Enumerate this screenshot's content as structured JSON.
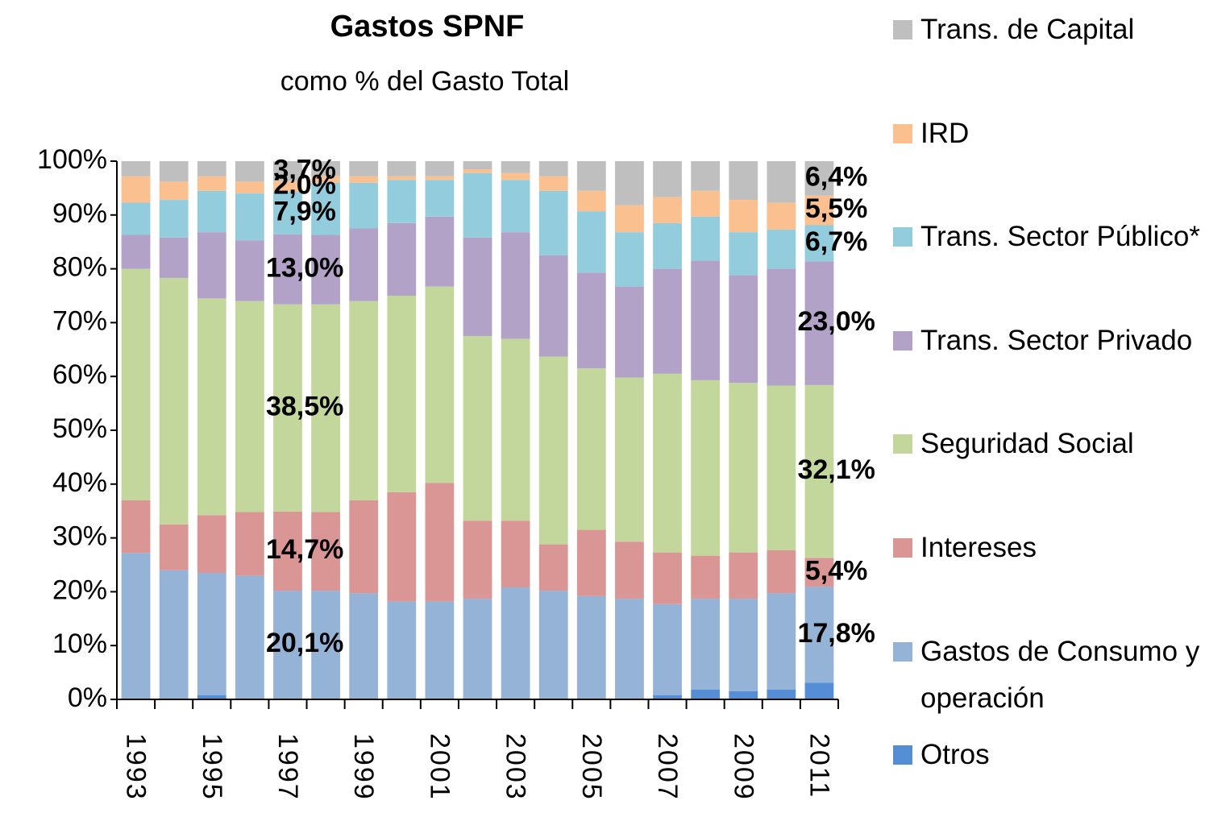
{
  "chart_data": {
    "type": "stacked_bar",
    "title": "Gastos SPNF",
    "subtitle": "como % del Gasto Total",
    "categories": [
      "1993",
      null,
      "1995",
      null,
      "1997",
      null,
      "1999",
      null,
      "2001",
      null,
      "2003",
      null,
      "2005",
      null,
      "2007",
      null,
      "2009",
      null,
      "2011"
    ],
    "ylim": [
      0,
      100
    ],
    "yticks": [
      {
        "value": 0,
        "label": "0%"
      },
      {
        "value": 10,
        "label": "10%"
      },
      {
        "value": 20,
        "label": "20%"
      },
      {
        "value": 30,
        "label": "30%"
      },
      {
        "value": 40,
        "label": "40%"
      },
      {
        "value": 50,
        "label": "50%"
      },
      {
        "value": 60,
        "label": "60%"
      },
      {
        "value": 70,
        "label": "70%"
      },
      {
        "value": 80,
        "label": "80%"
      },
      {
        "value": 90,
        "label": "90%"
      },
      {
        "value": 100,
        "label": "100%"
      }
    ],
    "legend": "right",
    "series": [
      {
        "name": "Otros",
        "color": "#558ed5",
        "values": [
          0,
          0,
          0.8,
          0,
          0.1,
          0,
          0,
          0,
          0,
          0,
          0,
          0,
          0,
          0,
          0.8,
          1.8,
          1.5,
          1.8,
          3.1
        ]
      },
      {
        "name": "Gastos de Consumo y operación",
        "color": "#95b3d7",
        "values": [
          27.2,
          24,
          22.7,
          23,
          20.1,
          20.2,
          19.7,
          18.2,
          18.2,
          18.7,
          20.8,
          20.2,
          19.2,
          18.7,
          16.9,
          16.9,
          17.2,
          17.9,
          17.8
        ],
        "value_labels": [
          null,
          null,
          null,
          null,
          "20,1%",
          null,
          null,
          null,
          null,
          null,
          null,
          null,
          null,
          null,
          null,
          null,
          null,
          null,
          "17,8%"
        ]
      },
      {
        "name": "Intereses",
        "color": "#d99694",
        "values": [
          9.8,
          8.5,
          10.7,
          11.8,
          14.7,
          14.6,
          17.3,
          20.3,
          22,
          14.5,
          12.4,
          8.6,
          12.3,
          10.6,
          9.6,
          8,
          8.6,
          8,
          5.4
        ],
        "value_labels": [
          null,
          null,
          null,
          null,
          "14,7%",
          null,
          null,
          null,
          null,
          null,
          null,
          null,
          null,
          null,
          null,
          null,
          null,
          null,
          "5,4%"
        ]
      },
      {
        "name": "Seguridad Social",
        "color": "#c3d69b",
        "values": [
          43,
          45.8,
          40.3,
          39.2,
          38.5,
          38.6,
          37,
          36.5,
          36.5,
          34.3,
          33.8,
          34.9,
          30,
          30.5,
          33.2,
          32.6,
          31.5,
          30.6,
          32.1
        ],
        "value_labels": [
          null,
          null,
          null,
          null,
          "38,5%",
          null,
          null,
          null,
          null,
          null,
          null,
          null,
          null,
          null,
          null,
          null,
          null,
          null,
          "32,1%"
        ]
      },
      {
        "name": "Trans. Sector Privado",
        "color": "#b3a2c7",
        "values": [
          6.3,
          7.5,
          12.3,
          11.3,
          13.0,
          12.9,
          13.5,
          13.5,
          13,
          18.3,
          19.8,
          18.8,
          17.8,
          16.9,
          19.5,
          22.2,
          20,
          21.7,
          23.0
        ],
        "value_labels": [
          null,
          null,
          null,
          null,
          "13,0%",
          null,
          null,
          null,
          null,
          null,
          null,
          null,
          null,
          null,
          null,
          null,
          null,
          null,
          "23,0%"
        ]
      },
      {
        "name": "Trans. Sector Público*",
        "color": "#93cddd",
        "values": [
          6,
          7,
          7.7,
          8.7,
          7.9,
          9.7,
          8.5,
          8,
          6.8,
          12,
          9.7,
          12,
          11.4,
          10.1,
          8.5,
          8.2,
          8,
          7.3,
          6.7
        ],
        "value_labels": [
          null,
          null,
          null,
          null,
          "7,9%",
          null,
          null,
          null,
          null,
          null,
          null,
          null,
          null,
          null,
          null,
          null,
          null,
          null,
          "6,7%"
        ]
      },
      {
        "name": "IRD",
        "color": "#fac090",
        "values": [
          4.9,
          3.4,
          2.7,
          2.2,
          2.0,
          1.2,
          1.2,
          0.7,
          0.7,
          0.7,
          1.3,
          2.7,
          3.8,
          5,
          4.8,
          4.8,
          6,
          5,
          5.5
        ],
        "value_labels": [
          null,
          null,
          null,
          null,
          "2,0%",
          null,
          null,
          null,
          null,
          null,
          null,
          null,
          null,
          null,
          null,
          null,
          null,
          null,
          "5,5%"
        ]
      },
      {
        "name": "Trans. de Capital",
        "color": "#bfbfbf",
        "values": [
          2.8,
          3.8,
          2.8,
          3.8,
          3.7,
          2.8,
          2.8,
          2.8,
          2.8,
          1.5,
          2.2,
          2.8,
          5.5,
          8.2,
          6.7,
          5.5,
          7.2,
          7.7,
          6.4
        ],
        "value_labels": [
          null,
          null,
          null,
          null,
          "3,7%",
          null,
          null,
          null,
          null,
          null,
          null,
          null,
          null,
          null,
          null,
          null,
          null,
          null,
          "6,4%"
        ]
      }
    ]
  }
}
